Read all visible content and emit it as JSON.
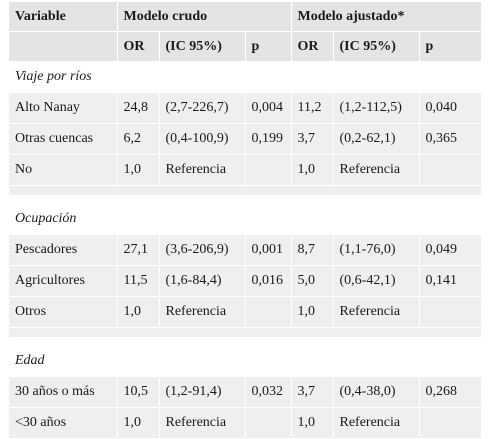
{
  "headers": {
    "variable": "Variable",
    "group_crude": "Modelo crudo",
    "group_adjusted": "Modelo ajustado*",
    "or": "OR",
    "ic": "(IC 95%)",
    "p": "p"
  },
  "sections": [
    {
      "title": "Viaje por ríos",
      "rows": [
        [
          "Alto Nanay",
          "24,8",
          "(2,7-226,7)",
          "0,004",
          "11,2",
          "(1,2-112,5)",
          "0,040"
        ],
        [
          "Otras cuencas",
          "6,2",
          "(0,4-100,9)",
          "0,199",
          "3,7",
          "(0,2-62,1)",
          "0,365"
        ],
        [
          "No",
          "1,0",
          "Referencia",
          "",
          "1,0",
          "Referencia",
          ""
        ]
      ]
    },
    {
      "title": "Ocupación",
      "rows": [
        [
          "Pescadores",
          "27,1",
          "(3,6-206,9)",
          "0,001",
          "8,7",
          "(1,1-76,0)",
          "0,049"
        ],
        [
          "Agricultores",
          "11,5",
          "(1,6-84,4)",
          "0,016",
          "5,0",
          "(0,6-42,1)",
          "0,141"
        ],
        [
          "Otros",
          "1,0",
          "Referencia",
          "",
          "1,0",
          "Referencia",
          ""
        ]
      ]
    },
    {
      "title": "Edad",
      "rows": [
        [
          "30 años o más",
          "10,5",
          "(1,2-91,4)",
          "0,032",
          "3,7",
          "(0,4-38,0)",
          "0,268"
        ],
        [
          "<30 años",
          "1,0",
          "Referencia",
          "",
          "1,0",
          "Referencia",
          ""
        ]
      ]
    }
  ]
}
